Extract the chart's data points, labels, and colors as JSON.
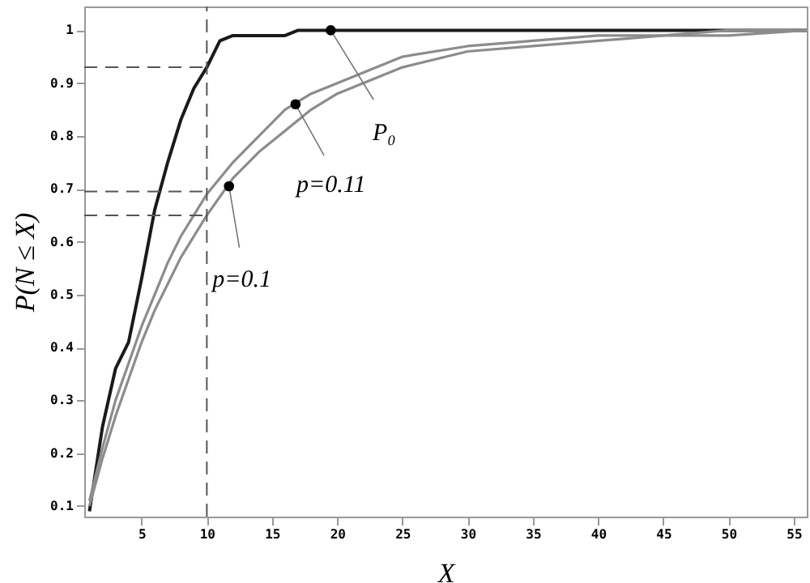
{
  "chart_data": {
    "type": "line",
    "xlabel": "X",
    "ylabel": "P(N ≤ X)",
    "xlim": [
      0.6,
      56
    ],
    "ylim": [
      0.08,
      1.045
    ],
    "xticks": [
      5,
      10,
      15,
      20,
      25,
      30,
      35,
      40,
      45,
      50,
      55
    ],
    "yticks": [
      0.1,
      0.2,
      0.3,
      0.4,
      0.5,
      0.6,
      0.7,
      0.8,
      0.9,
      1
    ],
    "grid": false,
    "marker": "none",
    "line_style": "solid",
    "series": [
      {
        "color": "#1a1a1a",
        "x": [
          1,
          2,
          3,
          4,
          5,
          6,
          7,
          8,
          9,
          10,
          11,
          12,
          16,
          17,
          20,
          30,
          40,
          56
        ],
        "values": [
          0.09,
          0.25,
          0.36,
          0.41,
          0.53,
          0.66,
          0.75,
          0.83,
          0.89,
          0.93,
          0.98,
          0.99,
          0.99,
          1.0,
          1.0,
          1.0,
          1.0,
          1.0
        ]
      },
      {
        "color": "#8c8c8c",
        "x": [
          1,
          2,
          3,
          4,
          5,
          6,
          7,
          8,
          10,
          12,
          14,
          16,
          18,
          20,
          25,
          30,
          35,
          40,
          45,
          50,
          56
        ],
        "values": [
          0.11,
          0.21,
          0.3,
          0.37,
          0.44,
          0.5,
          0.56,
          0.61,
          0.69,
          0.75,
          0.8,
          0.85,
          0.88,
          0.9,
          0.95,
          0.97,
          0.98,
          0.99,
          0.99,
          1.0,
          1.0
        ]
      },
      {
        "color": "#8c8c8c",
        "x": [
          1,
          2,
          3,
          4,
          5,
          6,
          7,
          8,
          10,
          12,
          14,
          16,
          18,
          20,
          25,
          30,
          35,
          40,
          45,
          50,
          56
        ],
        "values": [
          0.1,
          0.19,
          0.27,
          0.34,
          0.41,
          0.47,
          0.52,
          0.57,
          0.65,
          0.72,
          0.77,
          0.81,
          0.85,
          0.88,
          0.93,
          0.96,
          0.97,
          0.98,
          0.99,
          0.99,
          1.0
        ]
      }
    ],
    "annotations": [
      {
        "text": "p=0.1",
        "x": 11.7,
        "y": 0.705
      },
      {
        "text": "p=0.11",
        "x": 16.8,
        "y": 0.86
      },
      {
        "text": "P₀",
        "x": 19.5,
        "y": 1.0
      }
    ],
    "ref_lines": [
      {
        "axis": "x",
        "value": 10,
        "color": "#555555",
        "line_style": "dashed"
      },
      {
        "axis": "y",
        "value": 0.93,
        "color": "#555555",
        "line_style": "dashed"
      },
      {
        "axis": "y",
        "value": 0.695,
        "color": "#555555",
        "line_style": "dashed"
      },
      {
        "axis": "y",
        "value": 0.65,
        "color": "#555555",
        "line_style": "dashed"
      }
    ]
  }
}
